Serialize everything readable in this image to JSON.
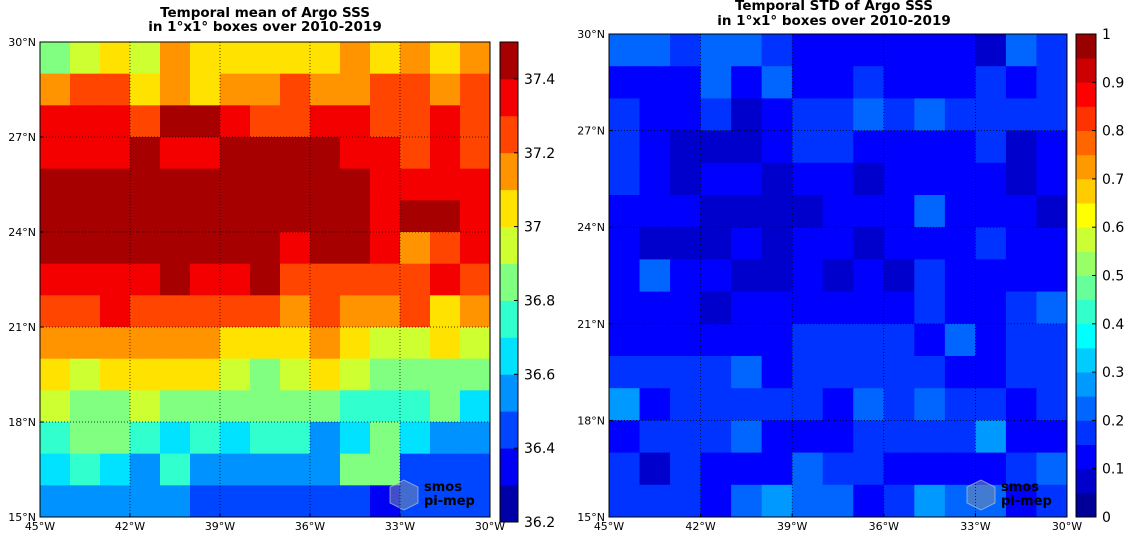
{
  "chart_data": [
    {
      "type": "heatmap",
      "title": "Temporal mean of Argo SSS",
      "subtitle": "in 1°x1° boxes over 2010-2019",
      "x_values": [
        -45,
        -44,
        -43,
        -42,
        -41,
        -40,
        -39,
        -38,
        -37,
        -36,
        -35,
        -34,
        -33,
        -32,
        -31
      ],
      "y_values": [
        29,
        28,
        27,
        26,
        25,
        24,
        23,
        22,
        21,
        20,
        19,
        18,
        17,
        16,
        15
      ],
      "xlim": [
        -45,
        -30
      ],
      "ylim": [
        15,
        30
      ],
      "x_ticks": [
        "45°W",
        "42°W",
        "39°W",
        "36°W",
        "33°W",
        "30°W"
      ],
      "y_ticks": [
        "30°N",
        "27°N",
        "24°N",
        "21°N",
        "18°N",
        "15°N"
      ],
      "grid": true,
      "colorbar": {
        "min": 36.2,
        "max": 37.5,
        "ticks": [
          "37.4",
          "37.2",
          "37",
          "36.8",
          "36.6",
          "36.4",
          "36.2"
        ],
        "tick_values": [
          37.4,
          37.2,
          37.0,
          36.8,
          36.6,
          36.4,
          36.2
        ],
        "levels": 13,
        "colormap": "jet"
      },
      "values": [
        [
          36.88,
          36.93,
          37.05,
          36.95,
          37.15,
          37.05,
          37.03,
          37.05,
          37.05,
          37.05,
          37.15,
          37.05,
          37.15,
          37.05,
          37.15
        ],
        [
          37.15,
          37.2,
          37.25,
          37.05,
          37.15,
          37.03,
          37.15,
          37.15,
          37.25,
          37.15,
          37.15,
          37.25,
          37.25,
          37.15,
          37.25
        ],
        [
          37.35,
          37.35,
          37.35,
          37.25,
          37.45,
          37.45,
          37.35,
          37.25,
          37.25,
          37.35,
          37.35,
          37.25,
          37.25,
          37.35,
          37.25
        ],
        [
          37.35,
          37.35,
          37.35,
          37.45,
          37.35,
          37.35,
          37.55,
          37.45,
          37.45,
          37.55,
          37.35,
          37.35,
          37.25,
          37.35,
          37.25
        ],
        [
          37.55,
          37.55,
          37.45,
          37.55,
          37.55,
          37.45,
          37.45,
          37.55,
          37.55,
          37.45,
          37.45,
          37.35,
          37.35,
          37.35,
          37.35
        ],
        [
          37.55,
          37.45,
          37.55,
          37.55,
          37.55,
          37.45,
          37.55,
          37.55,
          37.45,
          37.45,
          37.45,
          37.35,
          37.45,
          37.45,
          37.35
        ],
        [
          37.45,
          37.45,
          37.55,
          37.55,
          37.55,
          37.55,
          37.55,
          37.45,
          37.35,
          37.45,
          37.45,
          37.35,
          37.15,
          37.25,
          37.35
        ],
        [
          37.35,
          37.35,
          37.35,
          37.35,
          37.45,
          37.35,
          37.35,
          37.45,
          37.25,
          37.25,
          37.25,
          37.25,
          37.25,
          37.35,
          37.25
        ],
        [
          37.25,
          37.25,
          37.35,
          37.25,
          37.25,
          37.25,
          37.25,
          37.25,
          37.15,
          37.25,
          37.15,
          37.15,
          37.25,
          37.05,
          37.15
        ],
        [
          37.15,
          37.15,
          37.15,
          37.15,
          37.15,
          37.15,
          37.05,
          37.05,
          37.05,
          37.15,
          37.05,
          36.98,
          36.93,
          37.05,
          36.93
        ],
        [
          37.05,
          36.98,
          37.05,
          37.05,
          37.05,
          37.05,
          36.98,
          36.88,
          36.98,
          37.05,
          36.93,
          36.83,
          36.83,
          36.83,
          36.83
        ],
        [
          36.93,
          36.83,
          36.83,
          36.93,
          36.83,
          36.83,
          36.83,
          36.83,
          36.83,
          36.83,
          36.78,
          36.73,
          36.78,
          36.88,
          36.63
        ],
        [
          36.73,
          36.83,
          36.83,
          36.73,
          36.68,
          36.73,
          36.68,
          36.73,
          36.73,
          36.53,
          36.68,
          36.83,
          36.68,
          36.58,
          36.58
        ],
        [
          36.68,
          36.73,
          36.68,
          36.58,
          36.73,
          36.58,
          36.58,
          36.53,
          36.58,
          36.53,
          36.83,
          36.83,
          36.45,
          36.45,
          36.45
        ],
        [
          36.58,
          36.58,
          36.58,
          36.53,
          36.53,
          36.45,
          36.45,
          36.45,
          36.45,
          36.45,
          36.45,
          36.38,
          36.45,
          36.45,
          36.45
        ]
      ]
    },
    {
      "type": "heatmap",
      "title": "Temporal STD of Argo SSS",
      "subtitle": "in 1°x1° boxes over 2010-2019",
      "x_values": [
        -45,
        -44,
        -43,
        -42,
        -41,
        -40,
        -39,
        -38,
        -37,
        -36,
        -35,
        -34,
        -33,
        -32,
        -31
      ],
      "y_values": [
        29,
        28,
        27,
        26,
        25,
        24,
        23,
        22,
        21,
        20,
        19,
        18,
        17,
        16,
        15
      ],
      "xlim": [
        -45,
        -30
      ],
      "ylim": [
        15,
        30
      ],
      "x_ticks": [
        "45°W",
        "42°W",
        "39°W",
        "36°W",
        "33°W",
        "30°W"
      ],
      "y_ticks": [
        "30°N",
        "27°N",
        "24°N",
        "21°N",
        "18°N",
        "15°N"
      ],
      "grid": true,
      "colorbar": {
        "min": 0,
        "max": 1,
        "ticks": [
          "1",
          "0.9",
          "0.8",
          "0.7",
          "0.6",
          "0.5",
          "0.4",
          "0.3",
          "0.2",
          "0.1",
          "0"
        ],
        "tick_values": [
          1,
          0.9,
          0.8,
          0.7,
          0.6,
          0.5,
          0.4,
          0.3,
          0.2,
          0.1,
          0
        ],
        "levels": 20,
        "colormap": "jet"
      },
      "values": [
        [
          0.22,
          0.22,
          0.18,
          0.22,
          0.22,
          0.18,
          0.12,
          0.12,
          0.12,
          0.12,
          0.12,
          0.12,
          0.08,
          0.22,
          0.18
        ],
        [
          0.12,
          0.12,
          0.12,
          0.22,
          0.12,
          0.22,
          0.12,
          0.12,
          0.18,
          0.12,
          0.12,
          0.12,
          0.18,
          0.12,
          0.18
        ],
        [
          0.18,
          0.12,
          0.12,
          0.18,
          0.08,
          0.12,
          0.18,
          0.18,
          0.22,
          0.18,
          0.22,
          0.18,
          0.18,
          0.18,
          0.18
        ],
        [
          0.18,
          0.12,
          0.08,
          0.08,
          0.08,
          0.12,
          0.18,
          0.18,
          0.12,
          0.12,
          0.12,
          0.12,
          0.18,
          0.08,
          0.12
        ],
        [
          0.18,
          0.12,
          0.08,
          0.12,
          0.12,
          0.08,
          0.12,
          0.12,
          0.08,
          0.12,
          0.12,
          0.12,
          0.12,
          0.08,
          0.12
        ],
        [
          0.12,
          0.12,
          0.12,
          0.08,
          0.08,
          0.08,
          0.08,
          0.12,
          0.12,
          0.12,
          0.22,
          0.12,
          0.12,
          0.12,
          0.08
        ],
        [
          0.12,
          0.08,
          0.08,
          0.08,
          0.12,
          0.08,
          0.12,
          0.12,
          0.08,
          0.12,
          0.12,
          0.12,
          0.18,
          0.12,
          0.12
        ],
        [
          0.12,
          0.22,
          0.12,
          0.12,
          0.08,
          0.08,
          0.12,
          0.08,
          0.12,
          0.08,
          0.18,
          0.12,
          0.12,
          0.12,
          0.12
        ],
        [
          0.12,
          0.12,
          0.12,
          0.08,
          0.12,
          0.12,
          0.12,
          0.12,
          0.12,
          0.12,
          0.18,
          0.12,
          0.12,
          0.18,
          0.22
        ],
        [
          0.12,
          0.12,
          0.12,
          0.12,
          0.12,
          0.12,
          0.18,
          0.18,
          0.18,
          0.18,
          0.12,
          0.22,
          0.12,
          0.18,
          0.18
        ],
        [
          0.18,
          0.18,
          0.18,
          0.18,
          0.22,
          0.12,
          0.18,
          0.18,
          0.18,
          0.18,
          0.18,
          0.12,
          0.12,
          0.18,
          0.18
        ],
        [
          0.28,
          0.12,
          0.18,
          0.18,
          0.18,
          0.18,
          0.18,
          0.12,
          0.22,
          0.18,
          0.22,
          0.18,
          0.18,
          0.12,
          0.18
        ],
        [
          0.12,
          0.18,
          0.18,
          0.18,
          0.22,
          0.12,
          0.12,
          0.12,
          0.18,
          0.18,
          0.18,
          0.18,
          0.28,
          0.12,
          0.12
        ],
        [
          0.18,
          0.08,
          0.18,
          0.12,
          0.12,
          0.12,
          0.22,
          0.18,
          0.18,
          0.12,
          0.12,
          0.12,
          0.12,
          0.18,
          0.22
        ],
        [
          0.18,
          0.18,
          0.18,
          0.12,
          0.22,
          0.28,
          0.22,
          0.22,
          0.12,
          0.18,
          0.28,
          0.22,
          0.22,
          0.12,
          0.18
        ]
      ]
    }
  ],
  "watermark": {
    "line1": "smos",
    "line2": "pi-mep"
  }
}
